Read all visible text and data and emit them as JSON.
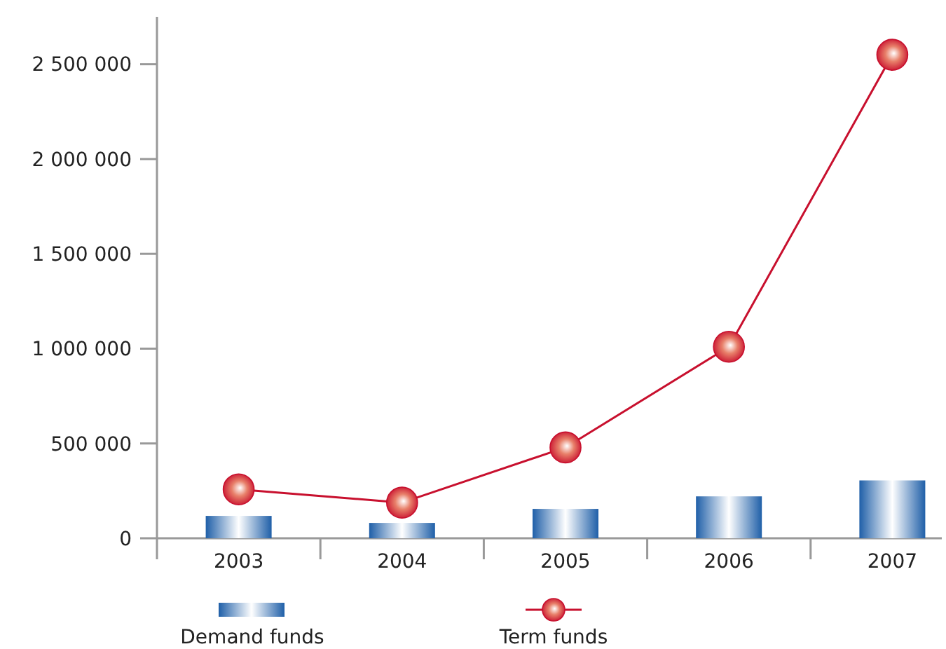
{
  "chart_data": {
    "type": "bar",
    "categories": [
      "2003",
      "2004",
      "2005",
      "2006",
      "2007"
    ],
    "series": [
      {
        "name": "Demand funds",
        "color": "#1f5fa8",
        "values": [
          118000,
          81000,
          155000,
          221000,
          305000
        ]
      },
      {
        "name": "Term funds",
        "type": "line",
        "color": "#c8102e",
        "marker": "circle",
        "values": [
          258000,
          188000,
          479000,
          1010000,
          2550000
        ]
      }
    ],
    "ylim": [
      0,
      2750000
    ],
    "yticks": [
      {
        "value": 0,
        "label": "0"
      },
      {
        "value": 500000,
        "label": "500 000"
      },
      {
        "value": 1000000,
        "label": "1 000 000"
      },
      {
        "value": 1500000,
        "label": "1 500 000"
      },
      {
        "value": 2000000,
        "label": "2 000 000"
      },
      {
        "value": 2500000,
        "label": "2 500 000"
      }
    ],
    "grid": false,
    "legend": "bottom"
  }
}
